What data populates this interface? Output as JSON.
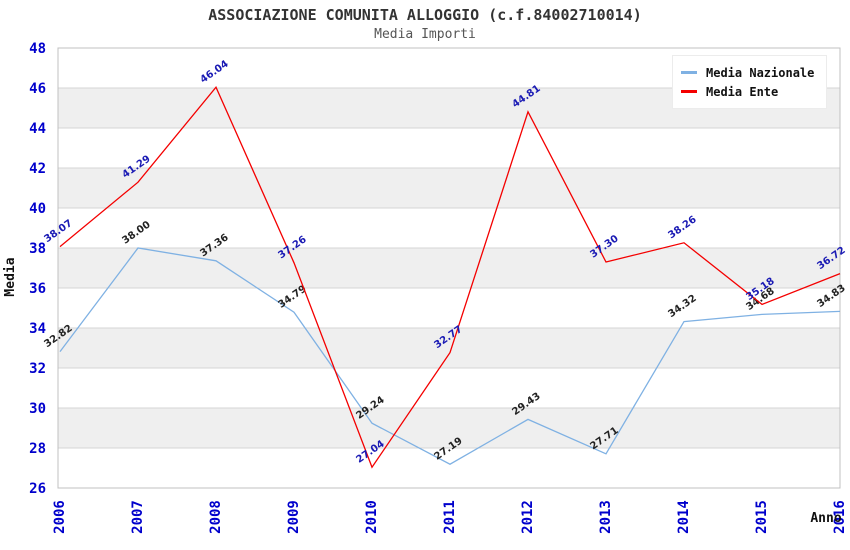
{
  "chart_data": {
    "type": "line",
    "title": "ASSOCIAZIONE COMUNITA ALLOGGIO (c.f.84002710014)",
    "subtitle": "Media Importi",
    "xlabel": "Anno",
    "ylabel": "Media",
    "categories": [
      "2006",
      "2007",
      "2008",
      "2009",
      "2010",
      "2011",
      "2012",
      "2013",
      "2014",
      "2015",
      "2016"
    ],
    "series": [
      {
        "name": "Media Nazionale",
        "color": "#7FB1E3",
        "label_color": "#222222",
        "values": [
          32.82,
          38.0,
          37.36,
          34.79,
          29.24,
          27.19,
          29.43,
          27.71,
          34.32,
          34.68,
          34.83
        ]
      },
      {
        "name": "Media Ente",
        "color": "#F40000",
        "label_color": "#1A1AB4",
        "values": [
          38.07,
          41.29,
          46.04,
          37.26,
          27.04,
          32.77,
          44.81,
          37.3,
          38.26,
          35.18,
          36.72
        ]
      }
    ],
    "ylim": [
      26,
      48
    ],
    "ytick_step": 2,
    "grid": true,
    "legend_position": "top-right",
    "tick_color": "#0000CC",
    "axis_title_color": "#111111",
    "band_colors": [
      "#FFFFFF",
      "#EFEFEF"
    ],
    "grid_color": "#D4D4D4",
    "border_color": "#C0C0C0"
  }
}
